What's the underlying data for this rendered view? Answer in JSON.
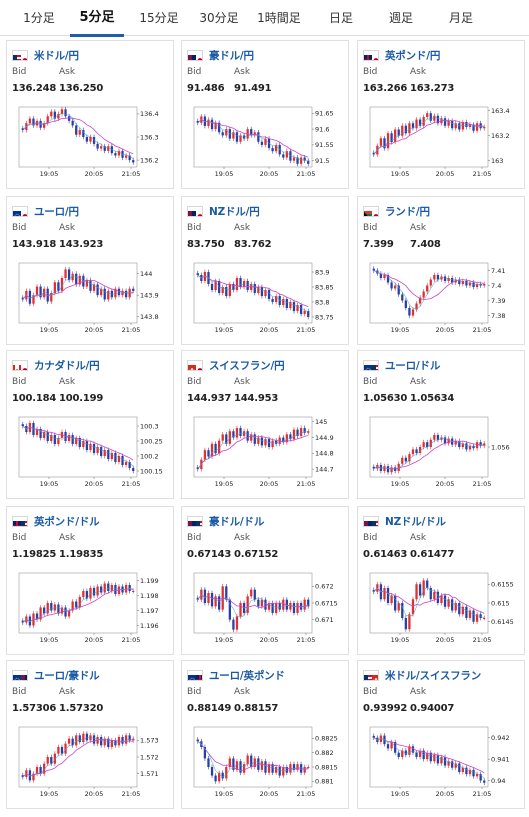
{
  "tabs": [
    {
      "label": "1分足"
    },
    {
      "label": "5分足",
      "active": true
    },
    {
      "label": "15分足"
    },
    {
      "label": "30分足"
    },
    {
      "label": "1時間足"
    },
    {
      "label": "日足"
    },
    {
      "label": "週足"
    },
    {
      "label": "月足"
    }
  ],
  "labels": {
    "bid": "Bid",
    "ask": "Ask"
  },
  "colors": {
    "up": "#e03030",
    "down": "#2a3fa6",
    "ma": "#cc44cc",
    "ma_fast": "#3aa0d8",
    "link": "#1a5aa6",
    "tab_underline": "#1f5fa8"
  },
  "cards": [
    {
      "pair": "米ドル/円",
      "flag_icon": "us-jp-flag-icon",
      "bid": "136.248",
      "ask": "136.250",
      "chart_data": {
        "type": "candlestick",
        "x_ticks": [
          "19:05",
          "20:05",
          "21:05"
        ],
        "y_ticks": [
          "136.4",
          "136.3",
          "136.2"
        ],
        "ylim": [
          136.17,
          136.43
        ],
        "close": [
          136.33,
          136.36,
          136.38,
          136.35,
          136.37,
          136.34,
          136.36,
          136.39,
          136.41,
          136.38,
          136.4,
          136.42,
          136.39,
          136.37,
          136.35,
          136.31,
          136.33,
          136.3,
          136.28,
          136.3,
          136.27,
          136.25,
          136.26,
          136.24,
          136.26,
          136.23,
          136.22,
          136.24,
          136.21,
          136.22,
          136.2,
          136.19
        ]
      }
    },
    {
      "pair": "豪ドル/円",
      "flag_icon": "au-jp-flag-icon",
      "bid": "91.486",
      "ask": "91.491",
      "chart_data": {
        "type": "candlestick",
        "x_ticks": [
          "19:05",
          "20:05",
          "21:05"
        ],
        "y_ticks": [
          "91.65",
          "91.6",
          "91.55",
          "91.5"
        ],
        "ylim": [
          91.48,
          91.67
        ],
        "close": [
          91.62,
          91.64,
          91.61,
          91.63,
          91.6,
          91.62,
          91.59,
          91.58,
          91.6,
          91.57,
          91.59,
          91.56,
          91.58,
          91.57,
          91.6,
          91.58,
          91.59,
          91.56,
          91.55,
          91.57,
          91.54,
          91.53,
          91.55,
          91.52,
          91.51,
          91.53,
          91.5,
          91.51,
          91.49,
          91.51,
          91.5,
          91.49
        ]
      }
    },
    {
      "pair": "英ポンド/円",
      "flag_icon": "gb-jp-flag-icon",
      "bid": "163.266",
      "ask": "163.273",
      "chart_data": {
        "type": "candlestick",
        "x_ticks": [
          "19:05",
          "20:05",
          "21:05"
        ],
        "y_ticks": [
          "163.4",
          "163.2",
          "163"
        ],
        "ylim": [
          162.95,
          163.43
        ],
        "close": [
          163.05,
          163.12,
          163.18,
          163.1,
          163.22,
          163.15,
          163.25,
          163.2,
          163.28,
          163.22,
          163.3,
          163.26,
          163.33,
          163.28,
          163.35,
          163.38,
          163.32,
          163.36,
          163.3,
          163.34,
          163.28,
          163.32,
          163.26,
          163.3,
          163.25,
          163.31,
          163.27,
          163.29,
          163.24,
          163.3,
          163.26,
          163.27
        ]
      }
    },
    {
      "pair": "ユーロ/円",
      "flag_icon": "eu-jp-flag-icon",
      "bid": "143.918",
      "ask": "143.923",
      "chart_data": {
        "type": "candlestick",
        "x_ticks": [
          "19:05",
          "20:05",
          "21:05"
        ],
        "y_ticks": [
          "144",
          "143.9",
          "143.8"
        ],
        "ylim": [
          143.77,
          144.05
        ],
        "close": [
          143.88,
          143.92,
          143.86,
          143.9,
          143.94,
          143.89,
          143.93,
          143.87,
          143.91,
          143.96,
          143.92,
          143.98,
          144.02,
          143.97,
          144.0,
          143.95,
          143.99,
          143.94,
          143.97,
          143.92,
          143.95,
          143.9,
          143.93,
          143.88,
          143.92,
          143.89,
          143.93,
          143.9,
          143.92,
          143.89,
          143.93,
          143.92
        ]
      }
    },
    {
      "pair": "NZドル/円",
      "flag_icon": "nz-jp-flag-icon",
      "bid": "83.750",
      "ask": "83.762",
      "chart_data": {
        "type": "candlestick",
        "x_ticks": [
          "19:05",
          "20:05",
          "21:05"
        ],
        "y_ticks": [
          "83.9",
          "83.85",
          "83.8",
          "83.75"
        ],
        "ylim": [
          83.73,
          83.93
        ],
        "close": [
          83.89,
          83.87,
          83.9,
          83.86,
          83.84,
          83.87,
          83.83,
          83.85,
          83.82,
          83.86,
          83.84,
          83.88,
          83.85,
          83.87,
          83.84,
          83.86,
          83.83,
          83.85,
          83.82,
          83.84,
          83.81,
          83.8,
          83.82,
          83.79,
          83.81,
          83.78,
          83.8,
          83.77,
          83.79,
          83.76,
          83.77,
          83.75
        ]
      }
    },
    {
      "pair": "ランド/円",
      "flag_icon": "za-jp-flag-icon",
      "bid": "7.399",
      "ask": "7.408",
      "chart_data": {
        "type": "candlestick",
        "x_ticks": [
          "19:05",
          "20:05",
          "21:05"
        ],
        "y_ticks": [
          "7.41",
          "7.4",
          "7.39",
          "7.38"
        ],
        "ylim": [
          7.375,
          7.415
        ],
        "close": [
          7.41,
          7.408,
          7.405,
          7.407,
          7.402,
          7.398,
          7.4,
          7.394,
          7.39,
          7.385,
          7.38,
          7.384,
          7.388,
          7.392,
          7.396,
          7.4,
          7.404,
          7.407,
          7.404,
          7.406,
          7.403,
          7.405,
          7.402,
          7.404,
          7.401,
          7.403,
          7.4,
          7.402,
          7.399,
          7.401,
          7.4,
          7.401
        ]
      }
    },
    {
      "pair": "カナダドル/円",
      "flag_icon": "ca-jp-flag-icon",
      "bid": "100.184",
      "ask": "100.199",
      "chart_data": {
        "type": "candlestick",
        "x_ticks": [
          "19:05",
          "20:05",
          "21:05"
        ],
        "y_ticks": [
          "100.3",
          "100.25",
          "100.2",
          "100.15"
        ],
        "ylim": [
          100.13,
          100.33
        ],
        "close": [
          100.3,
          100.28,
          100.31,
          100.27,
          100.29,
          100.26,
          100.28,
          100.25,
          100.27,
          100.24,
          100.26,
          100.28,
          100.25,
          100.27,
          100.24,
          100.26,
          100.23,
          100.25,
          100.22,
          100.24,
          100.21,
          100.23,
          100.2,
          100.22,
          100.19,
          100.21,
          100.18,
          100.2,
          100.17,
          100.18,
          100.16,
          100.15
        ]
      }
    },
    {
      "pair": "スイスフラン/円",
      "flag_icon": "ch-jp-flag-icon",
      "bid": "144.937",
      "ask": "144.953",
      "chart_data": {
        "type": "candlestick",
        "x_ticks": [
          "19:05",
          "20:05",
          "21:05"
        ],
        "y_ticks": [
          "145",
          "144.9",
          "144.8",
          "144.7"
        ],
        "ylim": [
          144.65,
          145.03
        ],
        "close": [
          144.7,
          144.76,
          144.82,
          144.78,
          144.86,
          144.8,
          144.88,
          144.92,
          144.86,
          144.94,
          144.9,
          144.96,
          144.91,
          144.94,
          144.88,
          144.92,
          144.86,
          144.9,
          144.85,
          144.89,
          144.84,
          144.88,
          144.86,
          144.9,
          144.87,
          144.92,
          144.89,
          144.95,
          144.91,
          144.96,
          144.93,
          144.94
        ]
      }
    },
    {
      "pair": "ユーロ/ドル",
      "flag_icon": "eu-us-flag-icon",
      "bid": "1.05630",
      "ask": "1.05634",
      "chart_data": {
        "type": "candlestick",
        "x_ticks": [
          "19:05",
          "20:05",
          "21:05"
        ],
        "y_ticks": [
          "1.056"
        ],
        "ylim": [
          1.0535,
          1.0585
        ],
        "close": [
          1.0542,
          1.0545,
          1.054,
          1.0544,
          1.0539,
          1.0543,
          1.054,
          1.0546,
          1.0551,
          1.0548,
          1.0554,
          1.0558,
          1.0555,
          1.056,
          1.0564,
          1.056,
          1.0566,
          1.057,
          1.0566,
          1.0568,
          1.0563,
          1.0567,
          1.0562,
          1.0565,
          1.056,
          1.0563,
          1.0558,
          1.0561,
          1.0559,
          1.0564,
          1.0561,
          1.0563
        ]
      }
    },
    {
      "pair": "英ポンド/ドル",
      "flag_icon": "gb-us-flag-icon",
      "bid": "1.19825",
      "ask": "1.19835",
      "chart_data": {
        "type": "candlestick",
        "x_ticks": [
          "19:05",
          "20:05",
          "21:05"
        ],
        "y_ticks": [
          "1.199",
          "1.198",
          "1.197",
          "1.196"
        ],
        "ylim": [
          1.1955,
          1.1995
        ],
        "close": [
          1.1962,
          1.1966,
          1.196,
          1.1968,
          1.1964,
          1.1972,
          1.1968,
          1.1975,
          1.197,
          1.1974,
          1.1968,
          1.1972,
          1.1966,
          1.197,
          1.1976,
          1.1972,
          1.1979,
          1.1983,
          1.1978,
          1.1985,
          1.198,
          1.1986,
          1.1982,
          1.1988,
          1.1983,
          1.1987,
          1.1981,
          1.1986,
          1.1982,
          1.1987,
          1.1983,
          1.1983
        ]
      }
    },
    {
      "pair": "豪ドル/ドル",
      "flag_icon": "au-us-flag-icon",
      "bid": "0.67143",
      "ask": "0.67152",
      "chart_data": {
        "type": "candlestick",
        "x_ticks": [
          "19:05",
          "20:05",
          "21:05"
        ],
        "y_ticks": [
          "0.672",
          "0.6715",
          "0.671"
        ],
        "ylim": [
          0.6706,
          0.6724
        ],
        "close": [
          0.6716,
          0.6719,
          0.6715,
          0.6718,
          0.6714,
          0.6717,
          0.6713,
          0.672,
          0.6716,
          0.671,
          0.6707,
          0.6711,
          0.6715,
          0.6712,
          0.6717,
          0.6719,
          0.6716,
          0.6714,
          0.6716,
          0.6713,
          0.6715,
          0.6712,
          0.6715,
          0.6713,
          0.6716,
          0.6713,
          0.6715,
          0.6712,
          0.6715,
          0.6713,
          0.6716,
          0.6714
        ]
      }
    },
    {
      "pair": "NZドル/ドル",
      "flag_icon": "nz-us-flag-icon",
      "bid": "0.61463",
      "ask": "0.61477",
      "chart_data": {
        "type": "candlestick",
        "x_ticks": [
          "19:05",
          "20:05",
          "21:05"
        ],
        "y_ticks": [
          "0.6155",
          "0.615",
          "0.6145"
        ],
        "ylim": [
          0.6142,
          0.6158
        ],
        "close": [
          0.6153,
          0.6155,
          0.6151,
          0.6154,
          0.615,
          0.6152,
          0.6148,
          0.615,
          0.6146,
          0.6143,
          0.6147,
          0.6151,
          0.6155,
          0.6152,
          0.6156,
          0.6154,
          0.6151,
          0.6153,
          0.615,
          0.6152,
          0.6149,
          0.6151,
          0.6148,
          0.615,
          0.6147,
          0.6149,
          0.6146,
          0.6148,
          0.6145,
          0.6147,
          0.6146,
          0.6146
        ]
      }
    },
    {
      "pair": "ユーロ/豪ドル",
      "flag_icon": "eu-au-flag-icon",
      "bid": "1.57306",
      "ask": "1.57320",
      "chart_data": {
        "type": "candlestick",
        "x_ticks": [
          "19:05",
          "20:05",
          "21:05"
        ],
        "y_ticks": [
          "1.573",
          "1.572",
          "1.571"
        ],
        "ylim": [
          1.5702,
          1.5738
        ],
        "close": [
          1.5708,
          1.5712,
          1.5706,
          1.571,
          1.5714,
          1.571,
          1.5716,
          1.572,
          1.5716,
          1.5722,
          1.5726,
          1.5722,
          1.5728,
          1.5731,
          1.5727,
          1.5733,
          1.5729,
          1.5734,
          1.573,
          1.5733,
          1.5728,
          1.5732,
          1.5727,
          1.5731,
          1.5726,
          1.573,
          1.5727,
          1.5732,
          1.5728,
          1.5733,
          1.573,
          1.5731
        ]
      }
    },
    {
      "pair": "ユーロ/英ポンド",
      "flag_icon": "eu-gb-flag-icon",
      "bid": "0.88149",
      "ask": "0.88157",
      "chart_data": {
        "type": "candlestick",
        "x_ticks": [
          "19:05",
          "20:05",
          "21:05"
        ],
        "y_ticks": [
          "0.8825",
          "0.882",
          "0.8815",
          "0.881"
        ],
        "ylim": [
          0.8808,
          0.8829
        ],
        "close": [
          0.8824,
          0.8822,
          0.8818,
          0.8815,
          0.8812,
          0.881,
          0.8813,
          0.8811,
          0.8815,
          0.8818,
          0.8814,
          0.8817,
          0.8813,
          0.8816,
          0.8819,
          0.8815,
          0.8818,
          0.8814,
          0.8817,
          0.8813,
          0.8816,
          0.8813,
          0.8815,
          0.8812,
          0.8815,
          0.8813,
          0.8816,
          0.8814,
          0.8816,
          0.8813,
          0.8815,
          0.8815
        ]
      }
    },
    {
      "pair": "米ドル/スイスフラン",
      "flag_icon": "us-ch-flag-icon",
      "bid": "0.93992",
      "ask": "0.94007",
      "chart_data": {
        "type": "candlestick",
        "x_ticks": [
          "19:05",
          "20:05",
          "21:05"
        ],
        "y_ticks": [
          "0.942",
          "0.941",
          "0.94"
        ],
        "ylim": [
          0.9397,
          0.9425
        ],
        "close": [
          0.942,
          0.9418,
          0.9421,
          0.9417,
          0.9415,
          0.9418,
          0.9413,
          0.9411,
          0.9414,
          0.9412,
          0.9416,
          0.9413,
          0.9411,
          0.9414,
          0.941,
          0.9413,
          0.9409,
          0.9412,
          0.9408,
          0.9411,
          0.9407,
          0.9409,
          0.9406,
          0.9408,
          0.9404,
          0.9406,
          0.9403,
          0.9405,
          0.9402,
          0.9403,
          0.94,
          0.9399
        ]
      }
    }
  ]
}
